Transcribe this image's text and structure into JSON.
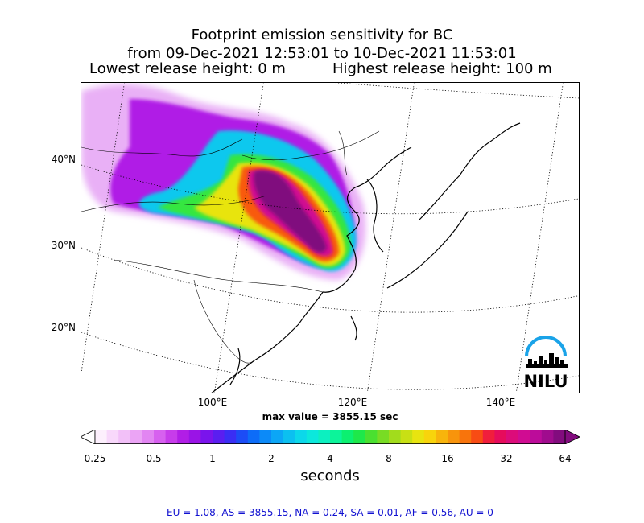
{
  "title": {
    "line1": "Footprint emission sensitivity for BC",
    "line2": "from 09-Dec-2021 12:53:01 to 10-Dec-2021 11:53:01",
    "lowest": "Lowest release height: 0 m",
    "highest": "Highest release height: 100 m"
  },
  "map": {
    "lat_labels": [
      "40°N",
      "30°N",
      "20°N"
    ],
    "lon_labels": [
      "100°E",
      "120°E",
      "140°E"
    ],
    "logo_text": "NILU",
    "logo_color": "#1aa3e8"
  },
  "max_value": "max value = 3855.15 sec",
  "colorbar": {
    "tick_labels": [
      "0.25",
      "0.5",
      "1",
      "2",
      "4",
      "8",
      "16",
      "32",
      "64"
    ],
    "unit": "seconds",
    "colors": [
      "#fdf0fd",
      "#f8d8fb",
      "#f2c0f8",
      "#eba4f5",
      "#e285f2",
      "#d760ef",
      "#c73cea",
      "#b11ee6",
      "#9a14e6",
      "#7a14ec",
      "#5a1ef0",
      "#3a2ef4",
      "#1c4cf6",
      "#0d6cf8",
      "#0c8af8",
      "#0ca6f6",
      "#0cc0f0",
      "#0cd8ea",
      "#0ce8dc",
      "#0cf0c0",
      "#0cf49a",
      "#0cf070",
      "#1ee84a",
      "#4ae030",
      "#78dc24",
      "#a2dc1c",
      "#c8e014",
      "#e8e410",
      "#f8d40c",
      "#f8b40c",
      "#f8940c",
      "#f8740c",
      "#f84c14",
      "#f01e3c",
      "#e60c5c",
      "#dc0c7a",
      "#d00c92",
      "#bc0c9a",
      "#a00c8e",
      "#820c7e"
    ]
  },
  "stats": "EU = 1.08,  AS = 3855.15,  NA = 0.24,  SA = 0.01,  AF = 0.56,  AU = 0"
}
